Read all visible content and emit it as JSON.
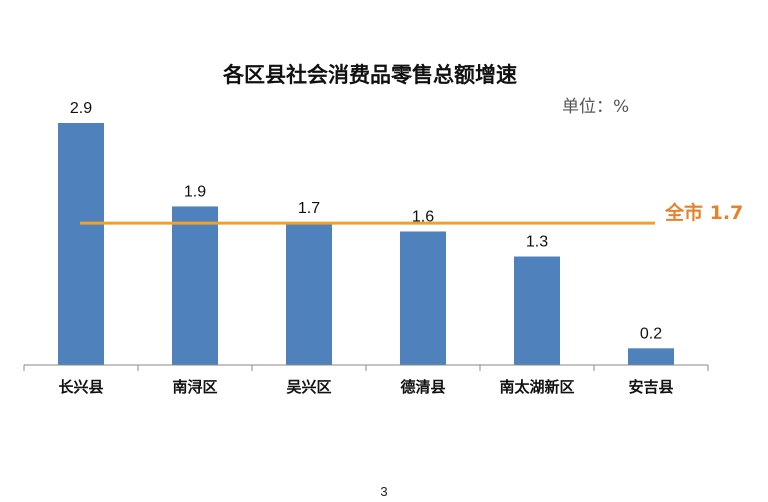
{
  "chart_data": {
    "type": "bar",
    "title": "各区县社会消费品零售总额增速",
    "unit_label": "单位：%",
    "categories": [
      "长兴县",
      "南浔区",
      "吴兴区",
      "德清县",
      "南太湖新区",
      "安吉县"
    ],
    "values": [
      2.9,
      1.9,
      1.7,
      1.6,
      1.3,
      0.2
    ],
    "data_labels": [
      "2.9",
      "1.9",
      "1.7",
      "1.6",
      "1.3",
      "0.2"
    ],
    "ylim": [
      0,
      3.0
    ],
    "grid": false,
    "reference_line": {
      "label": "全市 1.7",
      "value": 1.7
    },
    "colors": {
      "bar": "#4F81BD",
      "reference_line": "#F0A030",
      "reference_label": "#E8822A"
    }
  },
  "page_number": "3"
}
